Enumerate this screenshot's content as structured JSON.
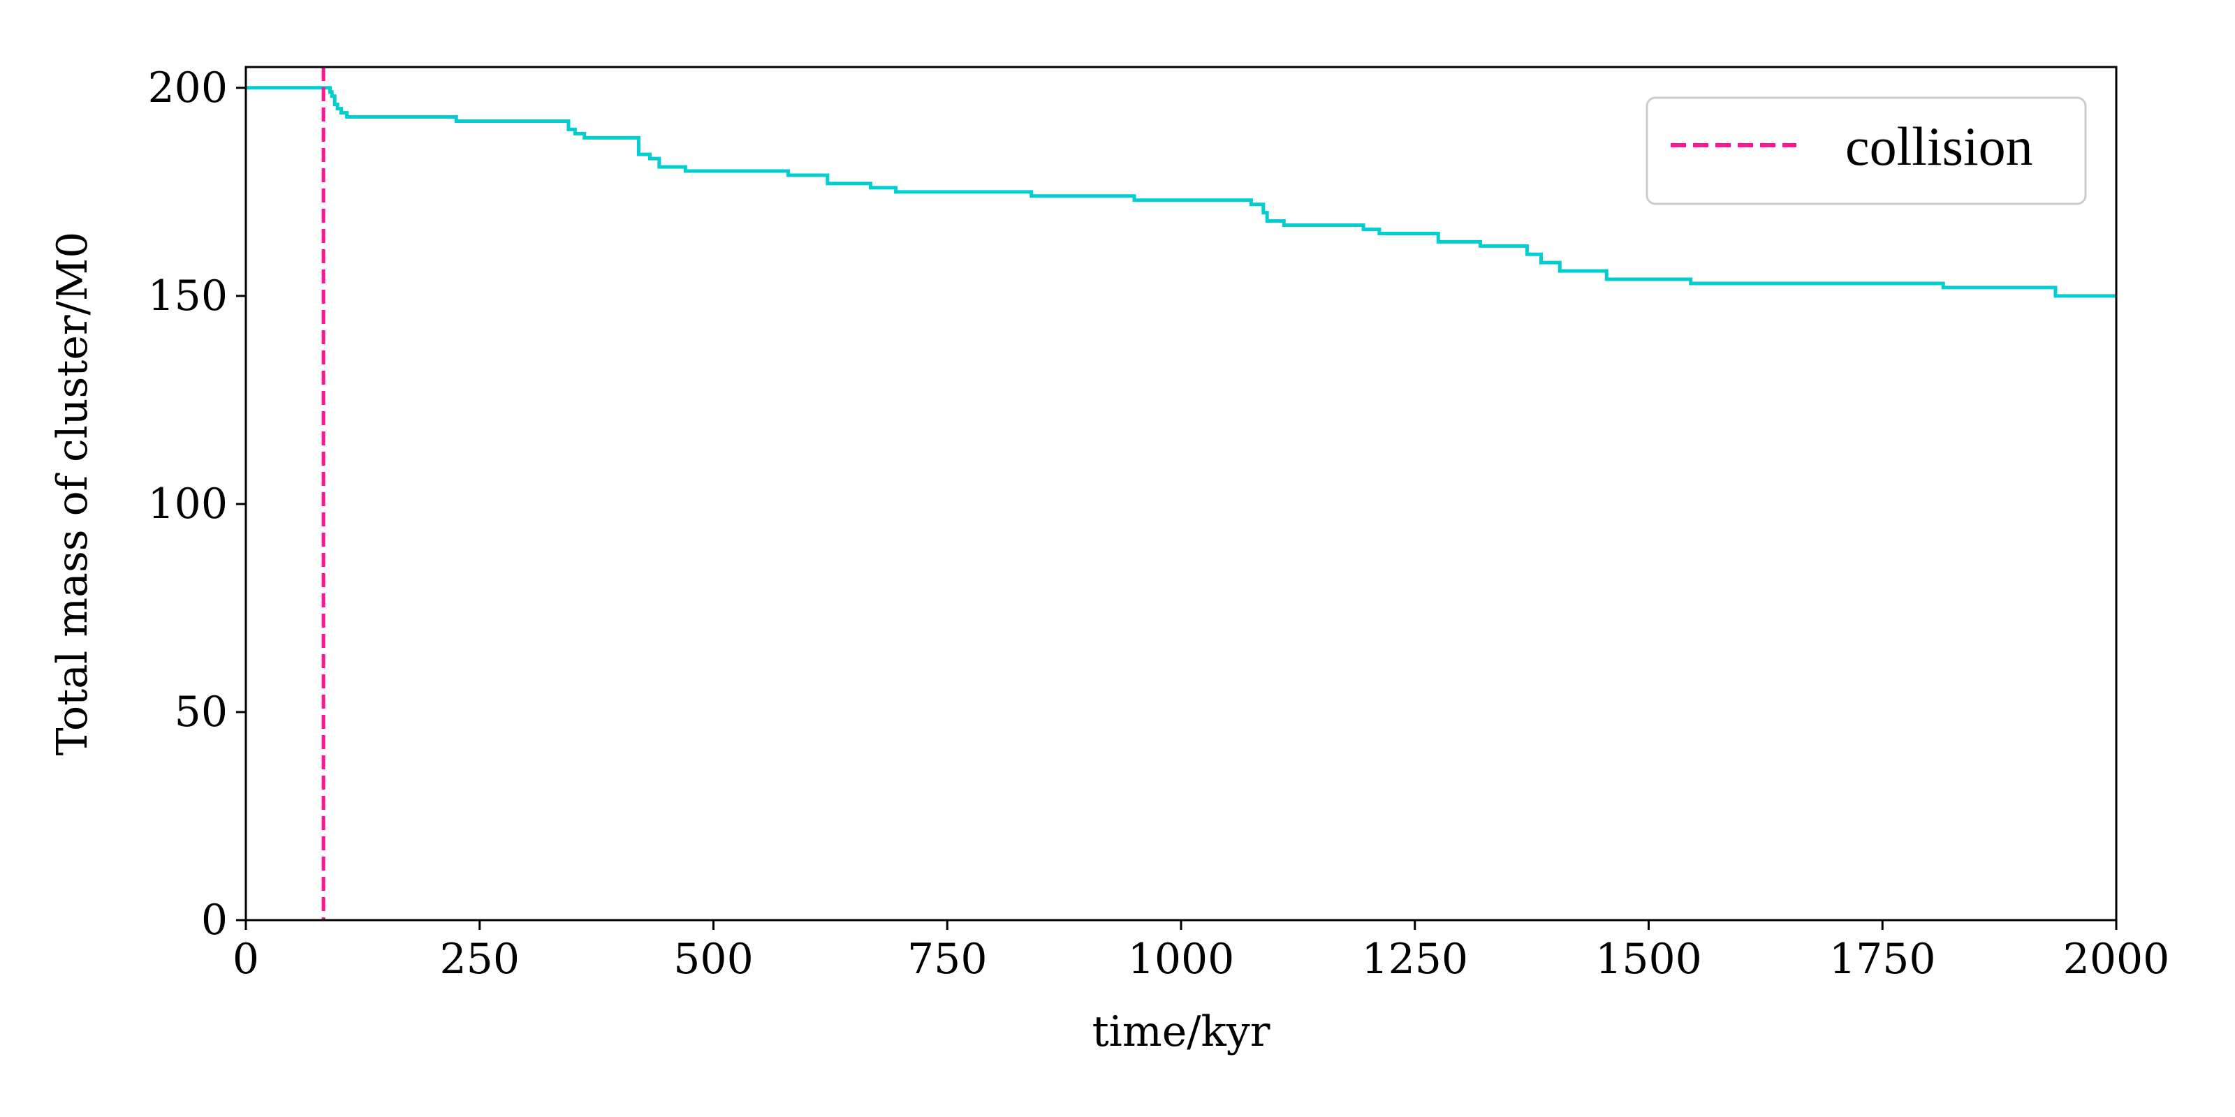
{
  "chart_data": {
    "type": "line",
    "xlabel": "time/kyr",
    "ylabel": "Total mass of cluster/M0",
    "xlim": [
      0,
      2000
    ],
    "ylim": [
      0,
      205
    ],
    "x_ticks": [
      0,
      250,
      500,
      750,
      1000,
      1250,
      1500,
      1750,
      2000
    ],
    "y_ticks": [
      0,
      50,
      100,
      150,
      200
    ],
    "grid": false,
    "legend_position": "top-right",
    "series": [
      {
        "step": true,
        "color": "#00CED1",
        "x": [
          0,
          90,
          92,
          95,
          98,
          102,
          108,
          225,
          345,
          352,
          362,
          380,
          420,
          432,
          442,
          450,
          470,
          580,
          622,
          668,
          695,
          840,
          950,
          1075,
          1088,
          1092,
          1110,
          1195,
          1212,
          1275,
          1320,
          1370,
          1385,
          1405,
          1455,
          1545,
          1815,
          1935,
          2000
        ],
        "y": [
          200,
          199,
          198,
          196,
          195,
          194,
          193,
          192,
          190,
          189,
          188,
          188,
          184,
          183,
          181,
          181,
          180,
          179,
          177,
          176,
          175,
          174,
          173,
          172,
          170,
          168,
          167,
          166,
          165,
          163,
          162,
          160,
          158,
          156,
          154,
          153,
          152,
          150,
          150
        ]
      },
      {
        "name": "collision",
        "kind": "vline",
        "x": 83,
        "color": "#FF1493",
        "dash": true
      }
    ]
  }
}
